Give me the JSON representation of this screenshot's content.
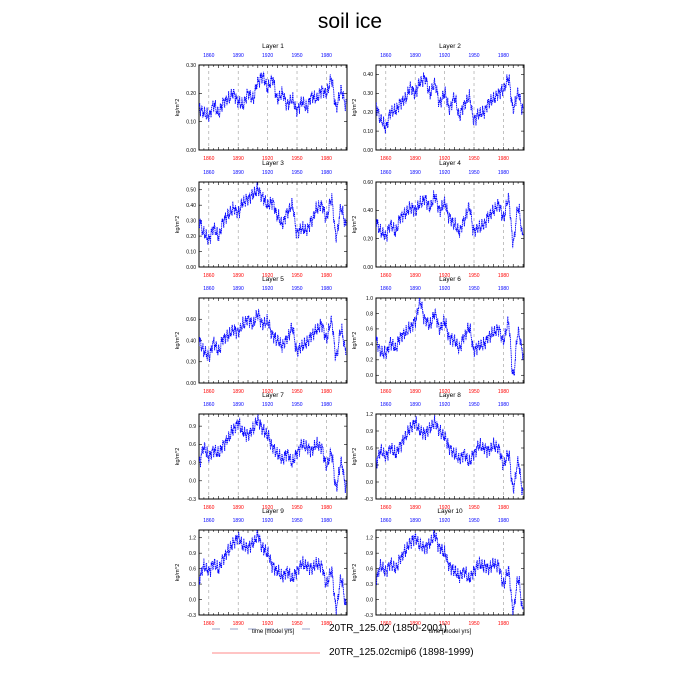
{
  "title": "soil ice",
  "colors": {
    "series": "#0000ff",
    "top_axis_labels": "#0000ff",
    "bottom_axis_labels": "#ff0000",
    "frame": "#000000",
    "year_grid": "#999999",
    "legend_dashed": "#9aa3c8",
    "legend_solid": "#ff8888"
  },
  "legend": [
    {
      "label": "20TR_125.02 (1850-2001)",
      "style": "dashed"
    },
    {
      "label": "20TR_125.02cmip6 (1898-1999)",
      "style": "solid"
    }
  ],
  "chart_data": [
    {
      "type": "line",
      "title": "Layer 1",
      "xlabel": "",
      "ylabel": "kg/m^2",
      "xlim": [
        1850,
        2001
      ],
      "xticks_top": [
        "1860",
        "1890",
        "1920",
        "1950",
        "1980"
      ],
      "xticks_bottom": [
        "1860",
        "1890",
        "1920",
        "1950",
        "1980"
      ],
      "ylim": [
        0,
        0.3
      ],
      "yticks": [
        "0.00",
        "0.10",
        "0.20",
        "0.30"
      ],
      "series": [
        {
          "x": [
            1850,
            1855,
            1860,
            1865,
            1870,
            1875,
            1880,
            1885,
            1890,
            1895,
            1900,
            1905,
            1910,
            1915,
            1920,
            1925,
            1930,
            1935,
            1940,
            1945,
            1950,
            1955,
            1960,
            1965,
            1970,
            1975,
            1980,
            1985,
            1990,
            1995,
            2000
          ],
          "values": [
            0.15,
            0.13,
            0.12,
            0.16,
            0.13,
            0.17,
            0.18,
            0.2,
            0.17,
            0.16,
            0.2,
            0.18,
            0.24,
            0.26,
            0.22,
            0.25,
            0.18,
            0.2,
            0.16,
            0.18,
            0.14,
            0.17,
            0.15,
            0.19,
            0.18,
            0.21,
            0.2,
            0.25,
            0.15,
            0.21,
            0.16
          ]
        }
      ]
    },
    {
      "type": "line",
      "title": "Layer 2",
      "xlabel": "",
      "ylabel": "kg/m^2",
      "xlim": [
        1850,
        2001
      ],
      "xticks_top": [
        "1860",
        "1890",
        "1920",
        "1950",
        "1980"
      ],
      "xticks_bottom": [
        "1860",
        "1890",
        "1920",
        "1950",
        "1980"
      ],
      "ylim": [
        0,
        0.45
      ],
      "yticks": [
        "0.00",
        "0.10",
        "0.20",
        "0.30",
        "0.40"
      ],
      "series": [
        {
          "x": [
            1850,
            1855,
            1860,
            1865,
            1870,
            1875,
            1880,
            1885,
            1890,
            1895,
            1900,
            1905,
            1910,
            1915,
            1920,
            1925,
            1930,
            1935,
            1940,
            1945,
            1950,
            1955,
            1960,
            1965,
            1970,
            1975,
            1980,
            1985,
            1990,
            1995,
            2000
          ],
          "values": [
            0.23,
            0.16,
            0.12,
            0.2,
            0.21,
            0.25,
            0.27,
            0.33,
            0.3,
            0.36,
            0.38,
            0.3,
            0.35,
            0.25,
            0.3,
            0.22,
            0.28,
            0.18,
            0.24,
            0.28,
            0.16,
            0.19,
            0.2,
            0.25,
            0.27,
            0.3,
            0.32,
            0.38,
            0.22,
            0.3,
            0.21
          ]
        }
      ]
    },
    {
      "type": "line",
      "title": "Layer 3",
      "xlabel": "",
      "ylabel": "kg/m^2",
      "xlim": [
        1850,
        2001
      ],
      "xticks_top": [
        "1860",
        "1890",
        "1920",
        "1950",
        "1980"
      ],
      "xticks_bottom": [
        "1860",
        "1890",
        "1920",
        "1950",
        "1980"
      ],
      "ylim": [
        0,
        0.55
      ],
      "yticks": [
        "0.00",
        "0.10",
        "0.20",
        "0.30",
        "0.40",
        "0.50"
      ],
      "series": [
        {
          "x": [
            1850,
            1855,
            1860,
            1865,
            1870,
            1875,
            1880,
            1885,
            1890,
            1895,
            1900,
            1905,
            1910,
            1915,
            1920,
            1925,
            1930,
            1935,
            1940,
            1945,
            1950,
            1955,
            1960,
            1965,
            1970,
            1975,
            1980,
            1985,
            1990,
            1995,
            2000
          ],
          "values": [
            0.3,
            0.22,
            0.18,
            0.25,
            0.2,
            0.3,
            0.34,
            0.38,
            0.35,
            0.42,
            0.44,
            0.47,
            0.5,
            0.45,
            0.4,
            0.42,
            0.33,
            0.28,
            0.35,
            0.4,
            0.22,
            0.25,
            0.24,
            0.3,
            0.38,
            0.4,
            0.32,
            0.44,
            0.2,
            0.38,
            0.27
          ]
        }
      ]
    },
    {
      "type": "line",
      "title": "Layer 4",
      "xlabel": "",
      "ylabel": "kg/m^2",
      "xlim": [
        1850,
        2001
      ],
      "xticks_top": [
        "1860",
        "1890",
        "1920",
        "1950",
        "1980"
      ],
      "xticks_bottom": [
        "1860",
        "1890",
        "1920",
        "1950",
        "1980"
      ],
      "ylim": [
        0,
        0.6
      ],
      "yticks": [
        "0.00",
        "0.20",
        "0.40",
        "0.60"
      ],
      "series": [
        {
          "x": [
            1850,
            1855,
            1860,
            1865,
            1870,
            1875,
            1880,
            1885,
            1890,
            1895,
            1900,
            1905,
            1910,
            1915,
            1920,
            1925,
            1930,
            1935,
            1940,
            1945,
            1950,
            1955,
            1960,
            1965,
            1970,
            1975,
            1980,
            1985,
            1990,
            1995,
            2000
          ],
          "values": [
            0.32,
            0.25,
            0.22,
            0.3,
            0.25,
            0.35,
            0.38,
            0.42,
            0.4,
            0.45,
            0.48,
            0.42,
            0.5,
            0.4,
            0.45,
            0.35,
            0.3,
            0.25,
            0.33,
            0.42,
            0.25,
            0.28,
            0.3,
            0.36,
            0.4,
            0.44,
            0.35,
            0.48,
            0.18,
            0.42,
            0.22
          ]
        }
      ]
    },
    {
      "type": "line",
      "title": "Layer 5",
      "xlabel": "",
      "ylabel": "kg/m^2",
      "xlim": [
        1850,
        2001
      ],
      "xticks_top": [
        "1860",
        "1890",
        "1920",
        "1950",
        "1980"
      ],
      "xticks_bottom": [
        "1860",
        "1890",
        "1920",
        "1950",
        "1980"
      ],
      "ylim": [
        0,
        0.8
      ],
      "yticks": [
        "0.00",
        "0.20",
        "0.40",
        "0.60"
      ],
      "series": [
        {
          "x": [
            1850,
            1855,
            1860,
            1865,
            1870,
            1875,
            1880,
            1885,
            1890,
            1895,
            1900,
            1905,
            1910,
            1915,
            1920,
            1925,
            1930,
            1935,
            1940,
            1945,
            1950,
            1955,
            1960,
            1965,
            1970,
            1975,
            1980,
            1985,
            1990,
            1995,
            2000
          ],
          "values": [
            0.4,
            0.3,
            0.25,
            0.38,
            0.3,
            0.42,
            0.45,
            0.5,
            0.48,
            0.55,
            0.6,
            0.55,
            0.65,
            0.55,
            0.58,
            0.45,
            0.4,
            0.35,
            0.42,
            0.52,
            0.3,
            0.35,
            0.38,
            0.45,
            0.5,
            0.55,
            0.42,
            0.58,
            0.25,
            0.5,
            0.3
          ]
        }
      ]
    },
    {
      "type": "line",
      "title": "Layer 6",
      "xlabel": "",
      "ylabel": "kg/m^2",
      "xlim": [
        1850,
        2001
      ],
      "xticks_top": [
        "1860",
        "1890",
        "1920",
        "1950",
        "1980"
      ],
      "xticks_bottom": [
        "1860",
        "1890",
        "1920",
        "1950",
        "1980"
      ],
      "ylim": [
        -0.1,
        1.0
      ],
      "yticks": [
        "0.0",
        "0.2",
        "0.4",
        "0.6",
        "0.8",
        "1.0"
      ],
      "series": [
        {
          "x": [
            1850,
            1855,
            1860,
            1865,
            1870,
            1875,
            1880,
            1885,
            1890,
            1895,
            1900,
            1905,
            1910,
            1915,
            1920,
            1925,
            1930,
            1935,
            1940,
            1945,
            1950,
            1955,
            1960,
            1965,
            1970,
            1975,
            1980,
            1985,
            1990,
            1995,
            2000
          ],
          "values": [
            0.45,
            0.3,
            0.28,
            0.42,
            0.35,
            0.5,
            0.55,
            0.62,
            0.7,
            0.95,
            0.72,
            0.65,
            0.8,
            0.6,
            0.7,
            0.48,
            0.45,
            0.35,
            0.5,
            0.62,
            0.32,
            0.38,
            0.4,
            0.5,
            0.55,
            0.6,
            0.45,
            0.68,
            0.0,
            0.55,
            0.3
          ]
        }
      ]
    },
    {
      "type": "line",
      "title": "Layer 7",
      "xlabel": "",
      "ylabel": "kg/m^2",
      "xlim": [
        1850,
        2001
      ],
      "xticks_top": [
        "1860",
        "1890",
        "1920",
        "1950",
        "1980"
      ],
      "xticks_bottom": [
        "1860",
        "1890",
        "1920",
        "1950",
        "1980"
      ],
      "ylim": [
        -0.3,
        1.1
      ],
      "yticks": [
        "-0.3",
        "0.0",
        "0.3",
        "0.6",
        "0.9"
      ],
      "series": [
        {
          "x": [
            1850,
            1855,
            1860,
            1865,
            1870,
            1875,
            1880,
            1885,
            1890,
            1895,
            1900,
            1905,
            1910,
            1915,
            1920,
            1925,
            1930,
            1935,
            1940,
            1945,
            1950,
            1955,
            1960,
            1965,
            1970,
            1975,
            1980,
            1985,
            1990,
            1995,
            2000
          ],
          "values": [
            0.3,
            0.55,
            0.4,
            0.5,
            0.45,
            0.6,
            0.7,
            0.85,
            0.95,
            0.8,
            0.75,
            0.85,
            1.0,
            0.85,
            0.75,
            0.55,
            0.45,
            0.35,
            0.45,
            0.3,
            0.45,
            0.6,
            0.55,
            0.5,
            0.6,
            0.55,
            0.25,
            0.45,
            -0.1,
            0.3,
            -0.1
          ]
        }
      ]
    },
    {
      "type": "line",
      "title": "Layer 8",
      "xlabel": "",
      "ylabel": "kg/m^2",
      "xlim": [
        1850,
        2001
      ],
      "xticks_top": [
        "1860",
        "1890",
        "1920",
        "1950",
        "1980"
      ],
      "xticks_bottom": [
        "1860",
        "1890",
        "1920",
        "1950",
        "1980"
      ],
      "ylim": [
        -0.3,
        1.2
      ],
      "yticks": [
        "-0.3",
        "0.0",
        "0.3",
        "0.6",
        "0.9",
        "1.2"
      ],
      "series": [
        {
          "x": [
            1850,
            1855,
            1860,
            1865,
            1870,
            1875,
            1880,
            1885,
            1890,
            1895,
            1900,
            1905,
            1910,
            1915,
            1920,
            1925,
            1930,
            1935,
            1940,
            1945,
            1950,
            1955,
            1960,
            1965,
            1970,
            1975,
            1980,
            1985,
            1990,
            1995,
            2000
          ],
          "values": [
            0.35,
            0.55,
            0.45,
            0.6,
            0.5,
            0.65,
            0.8,
            0.95,
            1.05,
            0.9,
            0.85,
            0.95,
            1.05,
            0.9,
            0.8,
            0.6,
            0.5,
            0.4,
            0.5,
            0.35,
            0.5,
            0.65,
            0.6,
            0.55,
            0.65,
            0.6,
            0.3,
            0.5,
            -0.1,
            0.35,
            -0.2
          ]
        }
      ]
    },
    {
      "type": "line",
      "title": "Layer 9",
      "xlabel": "time [model yrs]",
      "ylabel": "kg/m^2",
      "xlim": [
        1850,
        2001
      ],
      "xticks_top": [
        "1860",
        "1890",
        "1920",
        "1950",
        "1980"
      ],
      "xticks_bottom": [
        "1860",
        "1890",
        "1920",
        "1950",
        "1980"
      ],
      "ylim": [
        -0.3,
        1.35
      ],
      "yticks": [
        "-0.3",
        "0.0",
        "0.3",
        "0.6",
        "0.9",
        "1.2"
      ],
      "series": [
        {
          "x": [
            1850,
            1855,
            1860,
            1865,
            1870,
            1875,
            1880,
            1885,
            1890,
            1895,
            1900,
            1905,
            1910,
            1915,
            1920,
            1925,
            1930,
            1935,
            1940,
            1945,
            1950,
            1955,
            1960,
            1965,
            1970,
            1975,
            1980,
            1985,
            1990,
            1995,
            2000
          ],
          "values": [
            0.4,
            0.65,
            0.55,
            0.7,
            0.6,
            0.8,
            0.95,
            1.1,
            1.2,
            1.05,
            1.0,
            1.1,
            1.25,
            1.0,
            0.9,
            0.65,
            0.55,
            0.45,
            0.55,
            0.4,
            0.55,
            0.7,
            0.65,
            0.6,
            0.7,
            0.65,
            0.3,
            0.55,
            -0.15,
            0.4,
            -0.1
          ]
        }
      ]
    },
    {
      "type": "line",
      "title": "Layer 10",
      "xlabel": "time [model yrs]",
      "ylabel": "kg/m^2",
      "xlim": [
        1850,
        2001
      ],
      "xticks_top": [
        "1860",
        "1890",
        "1920",
        "1950",
        "1980"
      ],
      "xticks_bottom": [
        "1860",
        "1890",
        "1920",
        "1950",
        "1980"
      ],
      "ylim": [
        -0.3,
        1.35
      ],
      "yticks": [
        "-0.3",
        "0.0",
        "0.3",
        "0.6",
        "0.9",
        "1.2"
      ],
      "series": [
        {
          "x": [
            1850,
            1855,
            1860,
            1865,
            1870,
            1875,
            1880,
            1885,
            1890,
            1895,
            1900,
            1905,
            1910,
            1915,
            1920,
            1925,
            1930,
            1935,
            1940,
            1945,
            1950,
            1955,
            1960,
            1965,
            1970,
            1975,
            1980,
            1985,
            1990,
            1995,
            2000
          ],
          "values": [
            0.4,
            0.65,
            0.55,
            0.7,
            0.6,
            0.8,
            0.95,
            1.1,
            1.2,
            1.05,
            1.0,
            1.1,
            1.25,
            1.0,
            0.9,
            0.65,
            0.55,
            0.45,
            0.55,
            0.4,
            0.55,
            0.7,
            0.65,
            0.6,
            0.7,
            0.65,
            0.3,
            0.55,
            -0.2,
            0.4,
            -0.2
          ]
        }
      ]
    }
  ]
}
